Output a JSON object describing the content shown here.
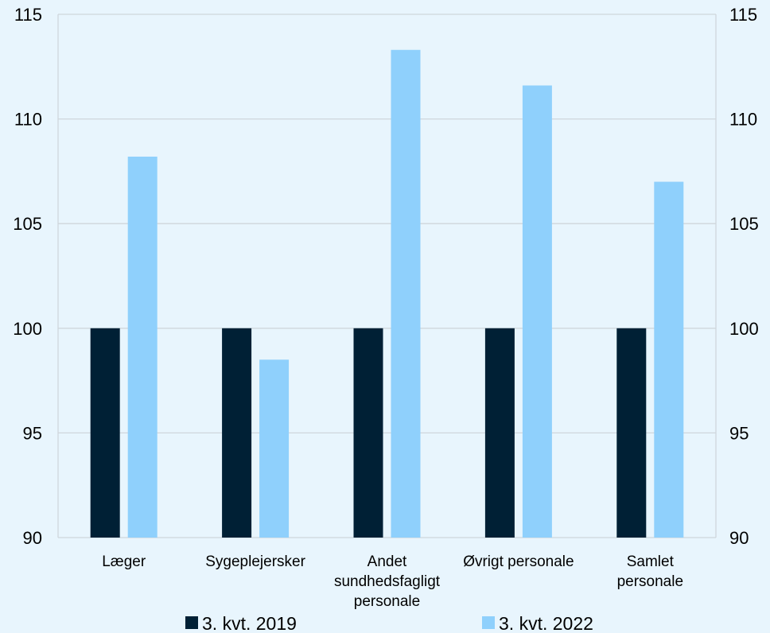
{
  "chart_data": {
    "type": "bar",
    "categories": [
      [
        "Læger"
      ],
      [
        "Sygeplejersker"
      ],
      [
        "Andet",
        "sundhedsfagligt",
        "personale"
      ],
      [
        "Øvrigt personale"
      ],
      [
        "Samlet",
        "personale"
      ]
    ],
    "series": [
      {
        "name": "3. kvt. 2019",
        "color": "#002035",
        "values": [
          100,
          100,
          100,
          100,
          100
        ]
      },
      {
        "name": "3. kvt. 2022",
        "color": "#8fd0fc",
        "values": [
          108.2,
          98.5,
          113.3,
          111.6,
          107.0
        ]
      }
    ],
    "ylim": [
      90,
      115
    ],
    "yticks": [
      90,
      95,
      100,
      105,
      110,
      115
    ],
    "grid": true,
    "secondary_axis": true,
    "legend": "bottom"
  }
}
